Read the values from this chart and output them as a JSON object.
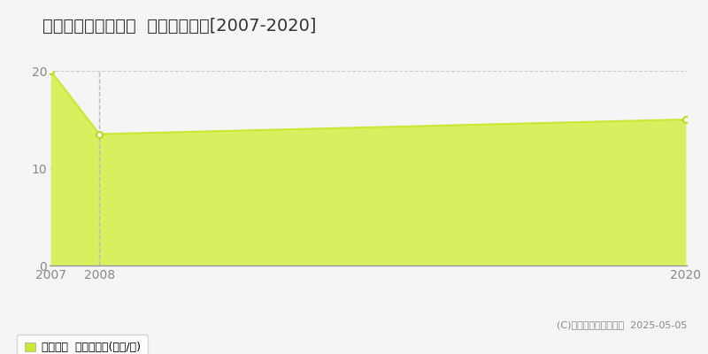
{
  "title": "加古川市別府町本町  土地価格推移[2007-2020]",
  "years": [
    2007,
    2008,
    2020
  ],
  "values": [
    20,
    13.5,
    15
  ],
  "line_color": "#c8e832",
  "fill_color": "#d8f060",
  "fill_alpha": 1.0,
  "marker_color": "#ffffff",
  "marker_edge_color": "#b8d820",
  "ylim": [
    0,
    20
  ],
  "yticks": [
    0,
    10,
    20
  ],
  "xlim_left": 2007,
  "xlim_right": 2020,
  "xtick_years": [
    2007,
    2008,
    2020
  ],
  "vline_x": 2008,
  "vline_color": "#bbbbbb",
  "grid_color": "#cccccc",
  "background_color": "#f5f5f5",
  "legend_label": "土地価格  平均坪単価(万円/坪)",
  "legend_color": "#c8e832",
  "copyright_text": "(C)土地価格ドットコム  2025-05-05",
  "title_fontsize": 14,
  "tick_fontsize": 10,
  "legend_fontsize": 9,
  "copyright_fontsize": 8
}
